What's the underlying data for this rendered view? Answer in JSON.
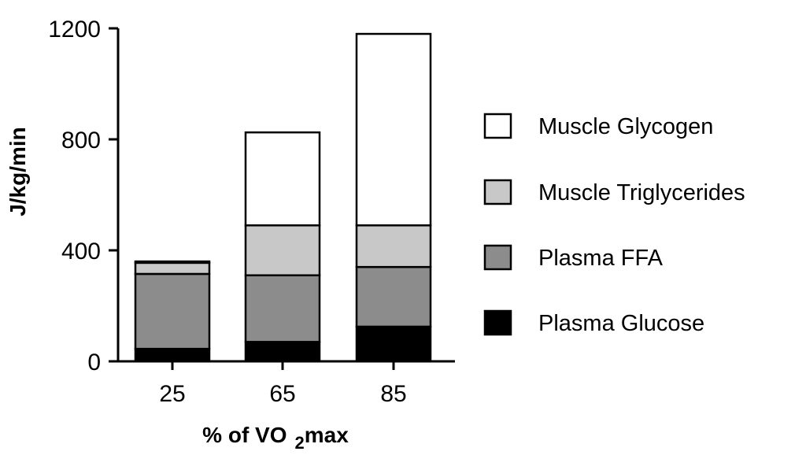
{
  "chart_data": {
    "type": "bar",
    "stacked": true,
    "categories": [
      "25",
      "65",
      "85"
    ],
    "series": [
      {
        "name": "Plasma Glucose",
        "values": [
          45,
          70,
          125
        ],
        "color": "#000000"
      },
      {
        "name": "Plasma FFA",
        "values": [
          270,
          240,
          215
        ],
        "color": "#8c8c8c"
      },
      {
        "name": "Muscle Triglycerides",
        "values": [
          40,
          180,
          150
        ],
        "color": "#c8c8c8"
      },
      {
        "name": "Muscle Glycogen",
        "values": [
          5,
          335,
          690
        ],
        "color": "#ffffff"
      }
    ],
    "ylim": [
      0,
      1200
    ],
    "yticks": [
      "0",
      "400",
      "800",
      "1200"
    ],
    "ytick_values": [
      0,
      400,
      800,
      1200
    ],
    "ylabel": "J/kg/min",
    "xlabel_main": "% of VO",
    "xlabel_sub": "2",
    "xlabel_tail": "max",
    "legend_position": "right",
    "legend_order": [
      "Muscle Glycogen",
      "Muscle Triglycerides",
      "Plasma FFA",
      "Plasma Glucose"
    ],
    "grid": false
  }
}
